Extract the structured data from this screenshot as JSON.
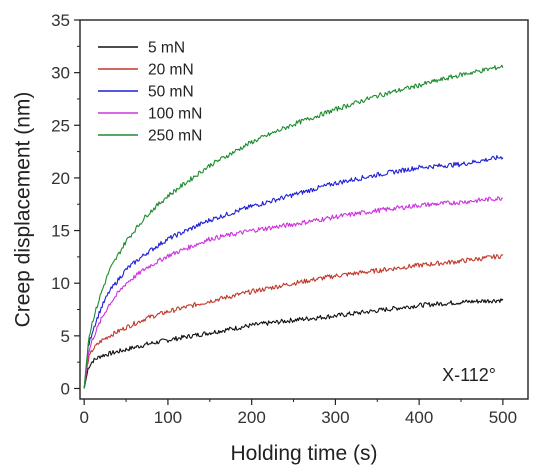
{
  "chart_data": {
    "type": "line",
    "title": "",
    "xlabel": "Holding time (s)",
    "ylabel": "Creep displacement (nm)",
    "xlim": [
      -5,
      530
    ],
    "ylim": [
      -1,
      35
    ],
    "xticks": [
      0,
      100,
      200,
      300,
      400,
      500
    ],
    "yticks": [
      0,
      5,
      10,
      15,
      20,
      25,
      30,
      35
    ],
    "grid": false,
    "legend_position": "top-left",
    "annotation": "X-112°",
    "series": [
      {
        "name": "5 mN",
        "color": "#111111",
        "x": [
          0,
          5,
          10,
          20,
          30,
          50,
          75,
          100,
          150,
          200,
          250,
          300,
          350,
          400,
          450,
          500
        ],
        "y": [
          0,
          2.0,
          2.6,
          3.1,
          3.3,
          3.7,
          4.2,
          4.6,
          5.3,
          6.0,
          6.5,
          6.9,
          7.4,
          7.9,
          8.2,
          8.4
        ]
      },
      {
        "name": "20 mN",
        "color": "#c0392b",
        "x": [
          0,
          5,
          10,
          20,
          30,
          50,
          75,
          100,
          150,
          200,
          250,
          300,
          350,
          400,
          450,
          500
        ],
        "y": [
          0,
          2.8,
          3.7,
          4.5,
          5.0,
          5.8,
          6.7,
          7.3,
          8.3,
          9.2,
          10.0,
          10.7,
          11.2,
          11.7,
          12.1,
          12.6
        ]
      },
      {
        "name": "50 mN",
        "color": "#1f1fd6",
        "x": [
          0,
          5,
          10,
          20,
          30,
          50,
          75,
          100,
          150,
          200,
          250,
          300,
          350,
          400,
          450,
          500
        ],
        "y": [
          0,
          4.0,
          5.5,
          7.6,
          9.2,
          11.3,
          12.9,
          14.2,
          16.0,
          17.3,
          18.4,
          19.5,
          20.3,
          21.0,
          21.3,
          22.0
        ]
      },
      {
        "name": "100 mN",
        "color": "#cc33dd",
        "x": [
          0,
          5,
          10,
          20,
          30,
          50,
          75,
          100,
          150,
          200,
          250,
          300,
          350,
          400,
          450,
          500
        ],
        "y": [
          0,
          3.3,
          4.7,
          6.5,
          8.0,
          10.0,
          11.5,
          12.6,
          14.2,
          15.0,
          15.6,
          16.3,
          16.9,
          17.4,
          17.7,
          18.1
        ]
      },
      {
        "name": "250 mN",
        "color": "#1e8c2e",
        "x": [
          0,
          5,
          10,
          20,
          30,
          50,
          75,
          100,
          150,
          200,
          250,
          300,
          350,
          400,
          450,
          500
        ],
        "y": [
          0,
          4.6,
          6.4,
          9.0,
          11.2,
          14.0,
          16.5,
          18.3,
          21.2,
          23.4,
          25.1,
          26.5,
          27.8,
          28.8,
          29.8,
          30.6
        ]
      }
    ]
  }
}
